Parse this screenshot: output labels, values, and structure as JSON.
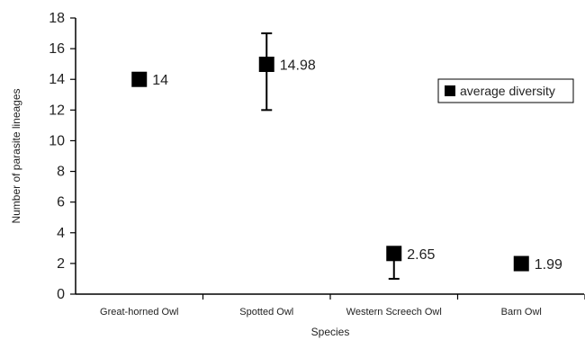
{
  "chart_data": {
    "type": "scatter",
    "title": "",
    "xlabel": "Species",
    "ylabel": "Number of parasite lineages",
    "ylim": [
      0,
      18
    ],
    "yticks": [
      0,
      2,
      4,
      6,
      8,
      10,
      12,
      14,
      16,
      18
    ],
    "categories": [
      "Great-horned Owl",
      "Spotted Owl",
      "Western Screech Owl",
      "Barn Owl"
    ],
    "series": [
      {
        "name": "average diversity",
        "values": [
          14,
          14.98,
          2.65,
          1.99
        ],
        "labels": [
          "14",
          "14.98",
          "2.65",
          "1.99"
        ],
        "error_high": [
          null,
          17.0,
          2.65,
          null
        ],
        "error_low": [
          null,
          12.0,
          1.0,
          null
        ]
      }
    ],
    "legend_position": "right",
    "grid": false,
    "marker": "square",
    "color": "#000000"
  }
}
